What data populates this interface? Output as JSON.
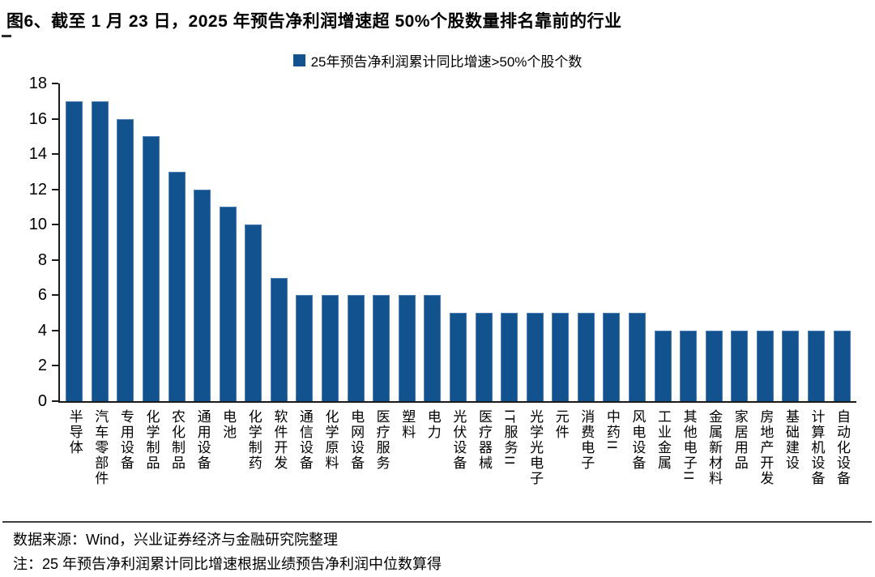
{
  "title": "图6、截至 1 月 23 日，2025 年预告净利润增速超 50%个股数量排名靠前的行业",
  "legend": {
    "swatch_icon": "blue-square-swatch",
    "label": "25年预告净利润累计同比增速>50%个股个数"
  },
  "footer": {
    "source": "数据来源：Wind，兴业证券经济与金融研究院整理",
    "note": "注：25 年预告净利润累计同比增速根据业绩预告净利润中位数算得"
  },
  "colors": {
    "bar": "#11528F",
    "axis": "#1a1a1a",
    "divider": "#3f3f3f",
    "text": "#000000"
  },
  "chart_data": {
    "type": "bar",
    "title": "图6、截至 1 月 23 日，2025 年预告净利润增速超 50%个股数量排名靠前的行业",
    "legend_entries": [
      "25年预告净利润累计同比增速>50%个股个数"
    ],
    "legend_position": "top",
    "grid": false,
    "xlabel": "",
    "ylabel": "",
    "ylim": [
      0,
      18
    ],
    "yticks": [
      0,
      2,
      4,
      6,
      8,
      10,
      12,
      14,
      16,
      18
    ],
    "categories": [
      "半导体",
      "汽车零部件",
      "专用设备",
      "化学制品",
      "农化制品",
      "通用设备",
      "电池",
      "化学制药",
      "软件开发",
      "通信设备",
      "化学原料",
      "电网设备",
      "医疗服务",
      "塑料",
      "电力",
      "光伏设备",
      "医疗器械",
      "IT服务II",
      "光学光电子",
      "元件",
      "消费电子",
      "中药II",
      "风电设备",
      "工业金属",
      "其他电子II",
      "金属新材料",
      "家居用品",
      "房地产开发",
      "基础建设",
      "计算机设备",
      "自动化设备"
    ],
    "values": [
      17,
      17,
      16,
      15,
      13,
      12,
      11,
      10,
      7,
      6,
      6,
      6,
      6,
      6,
      6,
      5,
      5,
      5,
      5,
      5,
      5,
      5,
      5,
      4,
      4,
      4,
      4,
      4,
      4,
      4,
      4
    ]
  }
}
